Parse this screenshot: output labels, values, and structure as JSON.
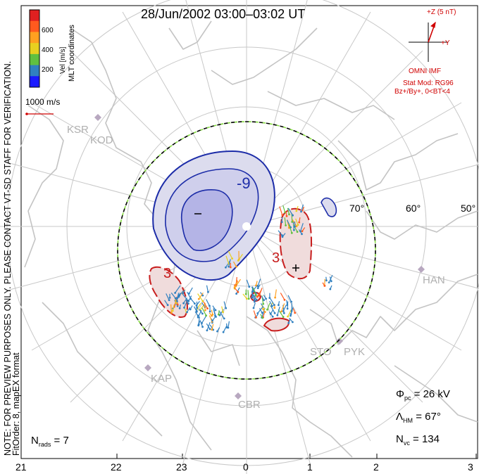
{
  "title": "28/Jun/2002 03:00–03:02 UT",
  "colorbar": {
    "label": "Vel [m/s]",
    "ticks": [
      "600",
      "400",
      "200"
    ],
    "colors": [
      "#e02020",
      "#ff5a1e",
      "#ffa020",
      "#e8d020",
      "#60c040",
      "#3080c0",
      "#1a1aff"
    ]
  },
  "coord_label": "MLT coordinates",
  "velocity_scale": "1000 m/s",
  "note_line1": "NOTE: FOR PREVIEW PURPOSES ONLY. PLEASE CONTACT VT-SD STAFF FOR VERIFICATION.",
  "note_line2": "FitOrder: 8, mapEX format",
  "imf": {
    "z_label": "+Z (5 nT)",
    "y_label": "+Y",
    "source": "OMNI IMF",
    "model": "Stat Mod: RG96",
    "condition": "Bz+/By+, 0<BT<4"
  },
  "stations": [
    "KSR",
    "KOD",
    "HAN",
    "STO",
    "PYK",
    "KAP",
    "CBR"
  ],
  "lat_labels": [
    "70°",
    "60°",
    "50°"
  ],
  "mlt_labels": [
    "21",
    "22",
    "23",
    "0",
    "1",
    "2",
    "3"
  ],
  "contour_labels": {
    "neg": "-9",
    "pos": "3"
  },
  "stats": {
    "phi_pc": "= 26 kV",
    "lambda_hm": "= 67°",
    "n_vc": "= 134",
    "n_rads": "= 7"
  }
}
